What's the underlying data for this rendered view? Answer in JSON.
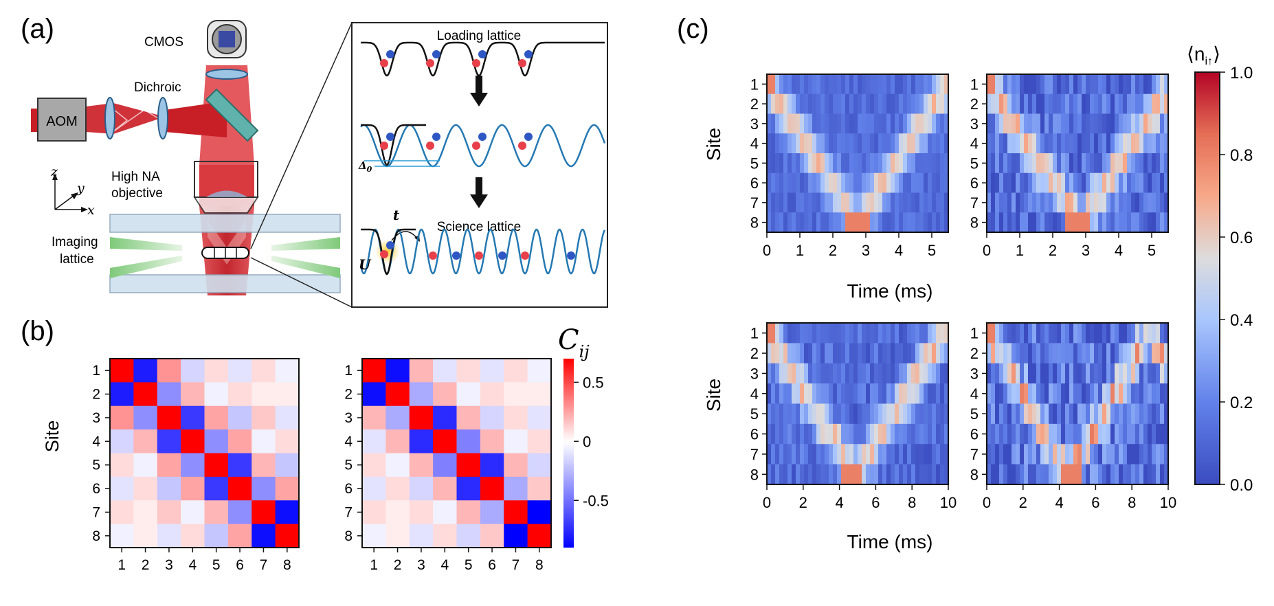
{
  "panels": {
    "a": {
      "label": "(a)",
      "components": {
        "cmos": "CMOS",
        "dichroic": "Dichroic",
        "aom": "AOM",
        "objective_line1": "High NA",
        "objective_line2": "objective",
        "imaging_line1": "Imaging",
        "imaging_line2": "lattice",
        "axis_z": "z",
        "axis_y": "y",
        "axis_x": "x"
      },
      "inset": {
        "loading": "Loading lattice",
        "delta": "Δ",
        "delta_sub": "0",
        "science": "Science lattice",
        "tunnel": "t",
        "interaction": "U"
      }
    },
    "b": {
      "label": "(b)",
      "ylabel": "Site",
      "colorbar_symbol": "C",
      "colorbar_sub": "ij"
    },
    "c": {
      "label": "(c)",
      "ylabel": "Site",
      "xlabel": "Time (ms)",
      "colorbar_label_main": "⟨n",
      "colorbar_label_sub": "i↑",
      "colorbar_label_end": "⟩"
    }
  },
  "chart_data": [
    {
      "id": "b-left",
      "type": "heatmap",
      "title": "",
      "xlabel": "",
      "ylabel": "Site",
      "x_categories": [
        "1",
        "2",
        "3",
        "4",
        "5",
        "6",
        "7",
        "8"
      ],
      "y_categories": [
        "1",
        "2",
        "3",
        "4",
        "5",
        "6",
        "7",
        "8"
      ],
      "values": [
        [
          0.7,
          -0.8,
          0.3,
          -0.15,
          0.1,
          -0.1,
          0.1,
          -0.05
        ],
        [
          -0.8,
          0.7,
          -0.4,
          0.2,
          -0.05,
          0.1,
          0.05,
          0.05
        ],
        [
          0.3,
          -0.4,
          0.7,
          -0.7,
          0.25,
          -0.2,
          0.15,
          -0.1
        ],
        [
          -0.15,
          0.2,
          -0.7,
          0.7,
          -0.4,
          0.25,
          -0.05,
          0.1
        ],
        [
          0.1,
          -0.05,
          0.25,
          -0.4,
          0.7,
          -0.7,
          0.2,
          -0.2
        ],
        [
          -0.1,
          0.1,
          -0.2,
          0.25,
          -0.7,
          0.7,
          -0.4,
          0.25
        ],
        [
          0.1,
          0.05,
          0.15,
          -0.05,
          0.2,
          -0.4,
          0.7,
          -0.85
        ],
        [
          -0.05,
          0.05,
          -0.1,
          0.1,
          -0.2,
          0.25,
          -0.85,
          0.7
        ]
      ],
      "colorbar": {
        "range": [
          -0.9,
          0.7
        ],
        "ticks": [
          "0.5",
          "0",
          "-0.5"
        ],
        "tick_values": [
          0.5,
          0,
          -0.5
        ]
      }
    },
    {
      "id": "b-right",
      "type": "heatmap",
      "title": "",
      "xlabel": "",
      "ylabel": "",
      "x_categories": [
        "1",
        "2",
        "3",
        "4",
        "5",
        "6",
        "7",
        "8"
      ],
      "y_categories": [
        "1",
        "2",
        "3",
        "4",
        "5",
        "6",
        "7",
        "8"
      ],
      "values": [
        [
          0.7,
          -0.85,
          0.2,
          -0.1,
          0.1,
          -0.1,
          0.1,
          -0.05
        ],
        [
          -0.85,
          0.7,
          -0.3,
          0.2,
          -0.05,
          0.1,
          0.05,
          0.05
        ],
        [
          0.2,
          -0.3,
          0.7,
          -0.75,
          0.2,
          -0.15,
          0.1,
          -0.1
        ],
        [
          -0.1,
          0.2,
          -0.75,
          0.7,
          -0.45,
          0.2,
          -0.05,
          0.1
        ],
        [
          0.1,
          -0.05,
          0.2,
          -0.45,
          0.7,
          -0.75,
          0.2,
          -0.15
        ],
        [
          -0.1,
          0.1,
          -0.15,
          0.2,
          -0.75,
          0.7,
          -0.3,
          0.15
        ],
        [
          0.1,
          0.05,
          0.1,
          -0.05,
          0.2,
          -0.3,
          0.7,
          -0.9
        ],
        [
          -0.05,
          0.05,
          -0.1,
          0.1,
          -0.15,
          0.15,
          -0.9,
          0.7
        ]
      ]
    },
    {
      "id": "c-top-left",
      "type": "heatmap",
      "description_mode": "walk",
      "xlabel": "",
      "ylabel": "Site",
      "xlim": [
        0,
        5.5
      ],
      "xticks": [
        "0",
        "1",
        "2",
        "3",
        "4",
        "5"
      ],
      "y_categories": [
        "1",
        "2",
        "3",
        "4",
        "5",
        "6",
        "7",
        "8"
      ],
      "walk": {
        "start": 0.2,
        "speed": 0.98,
        "noise": 0.15,
        "hot_time": 2.75,
        "hot_site": 8
      }
    },
    {
      "id": "c-top-right",
      "type": "heatmap",
      "description_mode": "walk",
      "xlabel": "",
      "ylabel": "",
      "xlim": [
        0,
        5.5
      ],
      "xticks": [
        "0",
        "1",
        "2",
        "3",
        "4",
        "5"
      ],
      "y_categories": [
        "1",
        "2",
        "3",
        "4",
        "5",
        "6",
        "7",
        "8"
      ],
      "walk": {
        "start": 0.2,
        "speed": 0.95,
        "noise": 0.3,
        "hot_time": 2.75,
        "hot_site": 8
      }
    },
    {
      "id": "c-bottom-left",
      "type": "heatmap",
      "description_mode": "walk",
      "xlabel": "Time (ms)",
      "ylabel": "Site",
      "xlim": [
        0,
        10
      ],
      "xticks": [
        "0",
        "2",
        "4",
        "6",
        "8",
        "10"
      ],
      "y_categories": [
        "1",
        "2",
        "3",
        "4",
        "5",
        "6",
        "7",
        "8"
      ],
      "walk": {
        "start": 0.2,
        "speed": 0.55,
        "noise": 0.22,
        "hot_time": 4.6,
        "hot_site": 8
      }
    },
    {
      "id": "c-bottom-right",
      "type": "heatmap",
      "description_mode": "walk",
      "xlabel": "Time (ms)",
      "ylabel": "",
      "xlim": [
        0,
        10
      ],
      "xticks": [
        "0",
        "2",
        "4",
        "6",
        "8",
        "10"
      ],
      "y_categories": [
        "1",
        "2",
        "3",
        "4",
        "5",
        "6",
        "7",
        "8"
      ],
      "walk": {
        "start": 0.2,
        "speed": 0.6,
        "noise": 0.4,
        "hot_time": 4.6,
        "hot_site": 8
      }
    },
    {
      "id": "c-colorbar",
      "type": "colorbar",
      "range": [
        0,
        1
      ],
      "ticks": [
        "0.0",
        "0.2",
        "0.4",
        "0.6",
        "0.8",
        "1.0"
      ],
      "tick_values": [
        0,
        0.2,
        0.4,
        0.6,
        0.8,
        1.0
      ]
    }
  ],
  "colors": {
    "beam_red": "#d8292f",
    "beam_light": "#ef8c87",
    "glass": "#cfe0ee",
    "green_beam": "#8fcf87",
    "dichroic": "#5fb3ac",
    "lattice_blue": "#2478b2",
    "atom_red": "#e8404a",
    "atom_blue": "#2f57c4"
  }
}
